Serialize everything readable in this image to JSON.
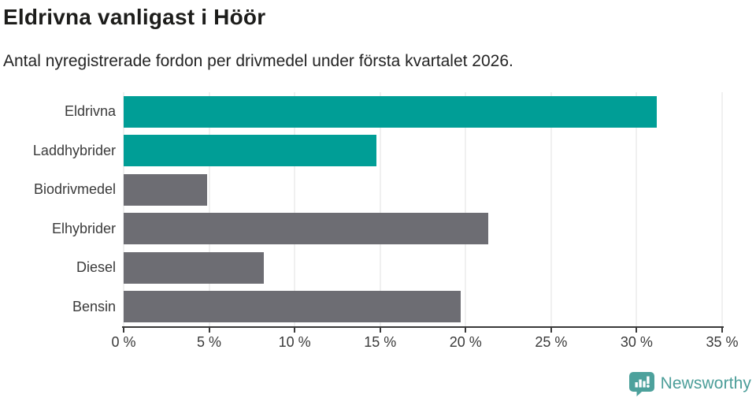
{
  "header": {
    "title": "Eldrivna vanligast i Höör",
    "subtitle": "Antal nyregistrerade fordon per drivmedel under första kvartalet 2026."
  },
  "chart_data": {
    "type": "bar",
    "orientation": "horizontal",
    "title": "Eldrivna vanligast i Höör",
    "subtitle": "Antal nyregistrerade fordon per drivmedel under första kvartalet 2026.",
    "categories": [
      "Eldrivna",
      "Laddhybrider",
      "Biodrivmedel",
      "Elhybrider",
      "Diesel",
      "Bensin"
    ],
    "values": [
      31.2,
      14.8,
      4.9,
      21.3,
      8.2,
      19.7
    ],
    "unit": "%",
    "bar_colors": [
      "#009e96",
      "#009e96",
      "#6d6d73",
      "#6d6d73",
      "#6d6d73",
      "#6d6d73"
    ],
    "highlight_color": "#009e96",
    "default_color": "#6d6d73",
    "xlabel": "",
    "ylabel": "",
    "xlim": [
      0,
      35
    ],
    "x_ticks": [
      0,
      5,
      10,
      15,
      20,
      25,
      30,
      35
    ],
    "x_tick_labels": [
      "0 %",
      "5 %",
      "10 %",
      "15 %",
      "20 %",
      "25 %",
      "30 %",
      "35 %"
    ],
    "grid": true,
    "gridline_color": "#e2e2e2",
    "axis_color": "#3a3a3a",
    "legend": "none"
  },
  "footer": {
    "brand": "Newsworthy",
    "brand_color": "#4c9e99",
    "logo_icon": "bar-chart-speech-bubble-icon",
    "logo_color": "#4da19c"
  }
}
